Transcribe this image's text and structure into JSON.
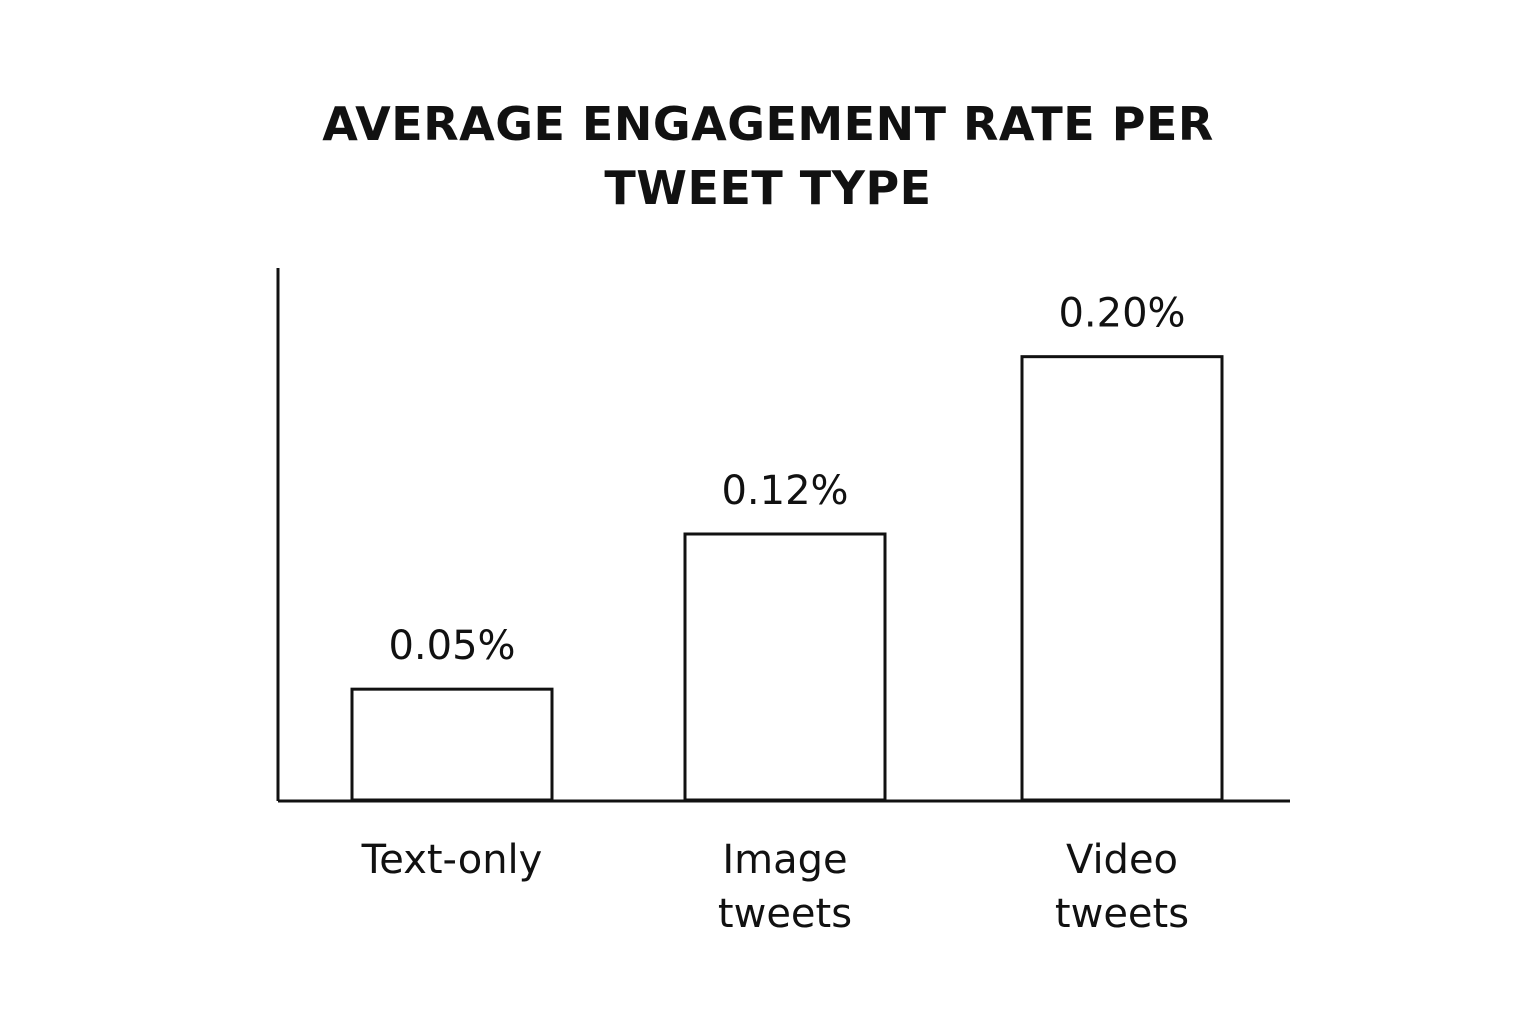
{
  "chart_data": {
    "type": "bar",
    "title_lines": [
      "AVERAGE ENGAGEMENT RATE PER",
      "TWEET TYPE"
    ],
    "xlabel": "",
    "ylabel": "",
    "categories": [
      [
        "Text-only"
      ],
      [
        "Image",
        "tweets"
      ],
      [
        "Video",
        "tweets"
      ]
    ],
    "values": [
      0.05,
      0.12,
      0.2
    ],
    "value_labels": [
      "0.05%",
      "0.12%",
      "0.20%"
    ],
    "unit": "%",
    "ylim": [
      0,
      0.24
    ],
    "grid": false,
    "legend": "none",
    "bar_fill": "#ffffff",
    "bar_stroke": "#111111"
  }
}
